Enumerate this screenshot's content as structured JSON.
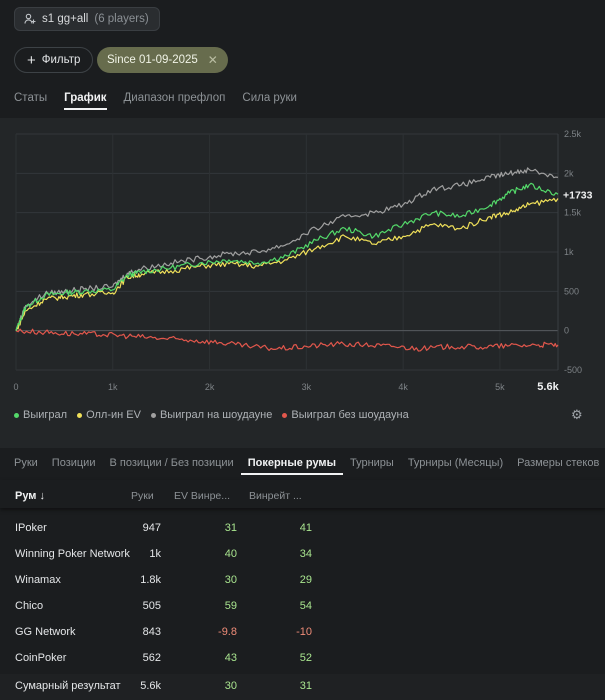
{
  "header": {
    "player_label": "s1 gg+all",
    "player_count": "(6 players)"
  },
  "filters": {
    "filter_label": "Фильтр",
    "date_chip": "Since 01-09-2025"
  },
  "top_tabs": [
    {
      "label": "Статы",
      "active": false
    },
    {
      "label": "График",
      "active": true
    },
    {
      "label": "Диапазон префлоп",
      "active": false
    },
    {
      "label": "Сила руки",
      "active": false
    }
  ],
  "chart_data": {
    "type": "line",
    "xlim": [
      0,
      5600
    ],
    "ylim": [
      -500,
      2500
    ],
    "x_ticks": [
      "0",
      "1k",
      "2k",
      "3k",
      "4k",
      "5k",
      "5.6k"
    ],
    "y_ticks": [
      "2.5k",
      "2k",
      "1.5k",
      "1k",
      "500",
      "0",
      "-500"
    ],
    "end_label": "+1733",
    "grid": true,
    "legend_position": "bottom-left",
    "series": [
      {
        "name": "Выиграл",
        "color": "#54d96a",
        "x": [
          0,
          100,
          300,
          500,
          700,
          1000,
          1150,
          1300,
          1600,
          1900,
          2200,
          2500,
          2800,
          3100,
          3400,
          3700,
          4000,
          4300,
          4600,
          4900,
          5100,
          5300,
          5600
        ],
        "y": [
          0,
          300,
          450,
          480,
          500,
          520,
          700,
          750,
          800,
          860,
          900,
          860,
          950,
          1150,
          1300,
          1200,
          1350,
          1500,
          1450,
          1600,
          1750,
          1850,
          1733
        ]
      },
      {
        "name": "Олл-ин EV",
        "color": "#f0e05a",
        "x": [
          0,
          100,
          300,
          500,
          700,
          1000,
          1150,
          1300,
          1600,
          1900,
          2200,
          2500,
          2800,
          3100,
          3400,
          3700,
          4000,
          4300,
          4600,
          4900,
          5100,
          5300,
          5600
        ],
        "y": [
          0,
          250,
          400,
          430,
          460,
          480,
          680,
          720,
          760,
          820,
          850,
          820,
          900,
          1050,
          1200,
          1100,
          1200,
          1350,
          1300,
          1450,
          1500,
          1600,
          1680
        ]
      },
      {
        "name": "Выиграл на шоудауне",
        "color": "#a0a0a0",
        "x": [
          0,
          100,
          300,
          500,
          700,
          1000,
          1150,
          1300,
          1600,
          1900,
          2200,
          2500,
          2800,
          3100,
          3400,
          3700,
          4000,
          4300,
          4600,
          4900,
          5100,
          5300,
          5600
        ],
        "y": [
          0,
          320,
          470,
          500,
          530,
          560,
          730,
          790,
          860,
          920,
          980,
          1000,
          1100,
          1300,
          1450,
          1500,
          1600,
          1800,
          1850,
          1950,
          2000,
          2050,
          1950
        ]
      },
      {
        "name": "Выиграл без шоудауна",
        "color": "#e2574c",
        "x": [
          0,
          300,
          600,
          900,
          1200,
          1500,
          1800,
          2100,
          2400,
          2700,
          3000,
          3300,
          3600,
          3900,
          4200,
          4500,
          4800,
          5100,
          5400,
          5600
        ],
        "y": [
          0,
          -20,
          -40,
          -50,
          -70,
          -100,
          -120,
          -150,
          -200,
          -230,
          -200,
          -170,
          -180,
          -200,
          -230,
          -200,
          -210,
          -190,
          -180,
          -180
        ]
      }
    ]
  },
  "legend_items": [
    {
      "label": "Выиграл",
      "color": "#54d96a"
    },
    {
      "label": "Олл-ин EV",
      "color": "#f0e05a"
    },
    {
      "label": "Выиграл на шоудауне",
      "color": "#a0a0a0"
    },
    {
      "label": "Выиграл без шоудауна",
      "color": "#e2574c"
    }
  ],
  "sub_tabs": [
    {
      "label": "Руки",
      "active": false
    },
    {
      "label": "Позиции",
      "active": false
    },
    {
      "label": "В позиции / Без позиции",
      "active": false
    },
    {
      "label": "Покерные румы",
      "active": true
    },
    {
      "label": "Турниры",
      "active": false
    },
    {
      "label": "Турниры (Месяцы)",
      "active": false
    },
    {
      "label": "Размеры стеков",
      "active": false
    }
  ],
  "table": {
    "columns": [
      "Рум ↓",
      "Руки",
      "EV Винре...",
      "Винрейт ..."
    ],
    "rows": [
      {
        "room": "IPoker",
        "hands": "947",
        "ev": "31",
        "wr": "41"
      },
      {
        "room": "Winning Poker Network",
        "hands": "1k",
        "ev": "40",
        "wr": "34"
      },
      {
        "room": "Winamax",
        "hands": "1.8k",
        "ev": "30",
        "wr": "29"
      },
      {
        "room": "Chico",
        "hands": "505",
        "ev": "59",
        "wr": "54"
      },
      {
        "room": "GG Network",
        "hands": "843",
        "ev": "-9.8",
        "wr": "-10"
      },
      {
        "room": "CoinPoker",
        "hands": "562",
        "ev": "43",
        "wr": "52"
      }
    ],
    "total": {
      "room": "Сумарный результат",
      "hands": "5.6k",
      "ev": "30",
      "wr": "31"
    }
  }
}
